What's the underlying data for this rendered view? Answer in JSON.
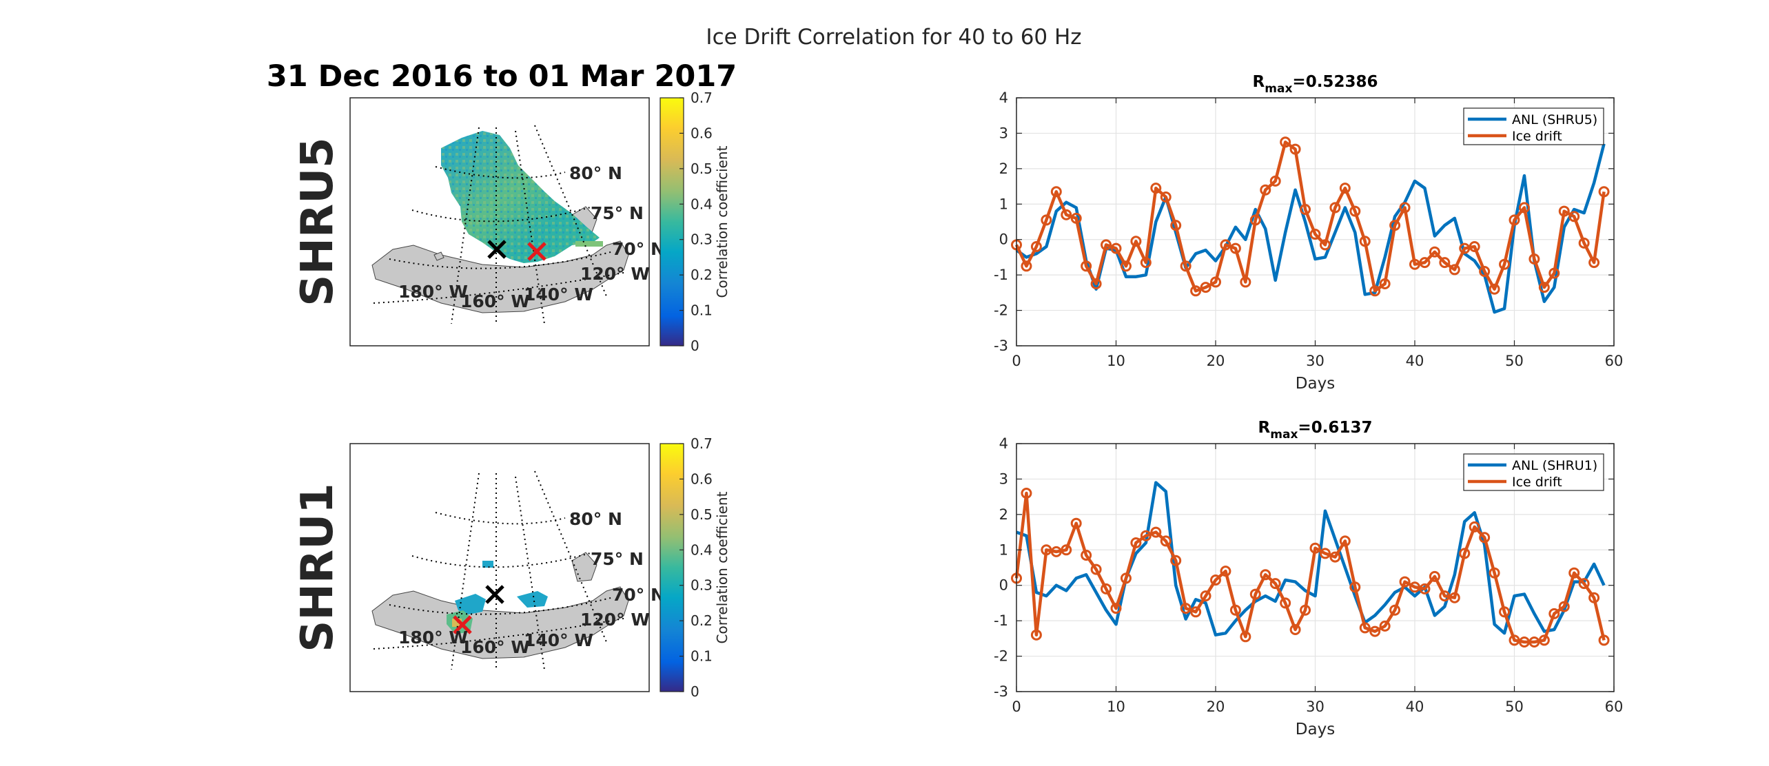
{
  "figure": {
    "title": "Ice Drift Correlation for 40 to 60 Hz",
    "date_range": "31 Dec 2016 to 01 Mar 2017"
  },
  "maps": [
    {
      "station_label": "SHRU5",
      "lat_labels": [
        "80° N",
        "75° N",
        "70° N"
      ],
      "lon_labels": [
        "180° W",
        "160° W",
        "140° W",
        "120° W"
      ],
      "colorbar": {
        "label": "Correlation coefficient",
        "ticks": [
          "0",
          "0.1",
          "0.2",
          "0.3",
          "0.4",
          "0.5",
          "0.6",
          "0.7"
        ]
      },
      "markers": [
        {
          "name": "black-cross",
          "color": "#000000"
        },
        {
          "name": "red-cross",
          "color": "#e41a1c"
        }
      ]
    },
    {
      "station_label": "SHRU1",
      "lat_labels": [
        "80° N",
        "75° N",
        "70° N"
      ],
      "lon_labels": [
        "180° W",
        "160° W",
        "140° W",
        "120° W"
      ],
      "colorbar": {
        "label": "Correlation coefficient",
        "ticks": [
          "0",
          "0.1",
          "0.2",
          "0.3",
          "0.4",
          "0.5",
          "0.6",
          "0.7"
        ]
      },
      "markers": [
        {
          "name": "black-cross",
          "color": "#000000"
        },
        {
          "name": "red-cross",
          "color": "#e41a1c"
        }
      ]
    }
  ],
  "chart_data": [
    {
      "type": "line",
      "title_prefix": "R",
      "title_sub": "max",
      "title_value": "=0.52386",
      "xlabel": "Days",
      "ylabel": "",
      "xlim": [
        0,
        60
      ],
      "ylim": [
        -3,
        4
      ],
      "xticks": [
        0,
        10,
        20,
        30,
        40,
        50,
        60
      ],
      "yticks": [
        -3,
        -2,
        -1,
        0,
        1,
        2,
        3,
        4
      ],
      "grid": true,
      "legend_position": "top-right",
      "series": [
        {
          "name": "ANL (SHRU5)",
          "color": "#0072BD",
          "marker": "none",
          "x": [
            0,
            1,
            2,
            3,
            4,
            5,
            6,
            7,
            8,
            9,
            10,
            11,
            12,
            13,
            14,
            15,
            16,
            17,
            18,
            19,
            20,
            21,
            22,
            23,
            24,
            25,
            26,
            27,
            28,
            29,
            30,
            31,
            32,
            33,
            34,
            35,
            36,
            37,
            38,
            39,
            40,
            41,
            42,
            43,
            44,
            45,
            46,
            47,
            48,
            49,
            50,
            51,
            52,
            53,
            54,
            55,
            56,
            57,
            58,
            59
          ],
          "y": [
            -0.3,
            -0.5,
            -0.4,
            -0.2,
            0.8,
            1.05,
            0.9,
            -0.6,
            -1.4,
            -0.25,
            -0.3,
            -1.05,
            -1.05,
            -1.0,
            0.5,
            1.2,
            0.2,
            -0.8,
            -0.4,
            -0.3,
            -0.6,
            -0.2,
            0.35,
            0.0,
            0.85,
            0.3,
            -1.15,
            0.2,
            1.4,
            0.5,
            -0.55,
            -0.5,
            0.2,
            0.9,
            0.2,
            -1.55,
            -1.5,
            -0.5,
            0.65,
            1.05,
            1.65,
            1.45,
            0.1,
            0.4,
            0.6,
            -0.4,
            -0.6,
            -1.0,
            -2.05,
            -1.95,
            0.4,
            1.8,
            -0.6,
            -1.75,
            -1.35,
            0.35,
            0.85,
            0.75,
            1.6,
            2.7
          ]
        },
        {
          "name": "Ice drift",
          "color": "#D95319",
          "marker": "circle",
          "x": [
            0,
            1,
            2,
            3,
            4,
            5,
            6,
            7,
            8,
            9,
            10,
            11,
            12,
            13,
            14,
            15,
            16,
            17,
            18,
            19,
            20,
            21,
            22,
            23,
            24,
            25,
            26,
            27,
            28,
            29,
            30,
            31,
            32,
            33,
            34,
            35,
            36,
            37,
            38,
            39,
            40,
            41,
            42,
            43,
            44,
            45,
            46,
            47,
            48,
            49,
            50,
            51,
            52,
            53,
            54,
            55,
            56,
            57,
            58,
            59
          ],
          "y": [
            -0.15,
            -0.75,
            -0.2,
            0.55,
            1.35,
            0.7,
            0.6,
            -0.75,
            -1.25,
            -0.15,
            -0.25,
            -0.75,
            -0.05,
            -0.65,
            1.45,
            1.2,
            0.4,
            -0.75,
            -1.45,
            -1.35,
            -1.2,
            -0.15,
            -0.25,
            -1.2,
            0.55,
            1.4,
            1.65,
            2.75,
            2.55,
            0.85,
            0.15,
            -0.15,
            0.9,
            1.45,
            0.8,
            -0.05,
            -1.45,
            -1.25,
            0.4,
            0.9,
            -0.7,
            -0.65,
            -0.35,
            -0.65,
            -0.85,
            -0.25,
            -0.2,
            -0.9,
            -1.4,
            -0.7,
            0.55,
            0.9,
            -0.55,
            -1.35,
            -0.95,
            0.8,
            0.65,
            -0.1,
            -0.65,
            1.35
          ]
        }
      ]
    },
    {
      "type": "line",
      "title_prefix": "R",
      "title_sub": "max",
      "title_value": "=0.6137",
      "xlabel": "Days",
      "ylabel": "",
      "xlim": [
        0,
        60
      ],
      "ylim": [
        -3,
        4
      ],
      "xticks": [
        0,
        10,
        20,
        30,
        40,
        50,
        60
      ],
      "yticks": [
        -3,
        -2,
        -1,
        0,
        1,
        2,
        3,
        4
      ],
      "grid": true,
      "legend_position": "top-right",
      "series": [
        {
          "name": "ANL (SHRU1)",
          "color": "#0072BD",
          "marker": "none",
          "x": [
            0,
            1,
            2,
            3,
            4,
            5,
            6,
            7,
            8,
            9,
            10,
            11,
            12,
            13,
            14,
            15,
            16,
            17,
            18,
            19,
            20,
            21,
            22,
            23,
            24,
            25,
            26,
            27,
            28,
            29,
            30,
            31,
            32,
            33,
            34,
            35,
            36,
            37,
            38,
            39,
            40,
            41,
            42,
            43,
            44,
            45,
            46,
            47,
            48,
            49,
            50,
            51,
            52,
            53,
            54,
            55,
            56,
            57,
            58,
            59
          ],
          "y": [
            1.5,
            1.4,
            -0.2,
            -0.3,
            0.0,
            -0.15,
            0.2,
            0.3,
            -0.2,
            -0.7,
            -1.1,
            0.2,
            0.9,
            1.2,
            2.9,
            2.65,
            0.0,
            -0.95,
            -0.4,
            -0.5,
            -1.4,
            -1.35,
            -1.0,
            -0.7,
            -0.45,
            -0.3,
            -0.45,
            0.15,
            0.1,
            -0.15,
            -0.3,
            2.1,
            1.3,
            0.5,
            -0.3,
            -1.05,
            -0.85,
            -0.55,
            -0.2,
            -0.05,
            -0.3,
            -0.05,
            -0.85,
            -0.6,
            0.3,
            1.8,
            2.05,
            1.15,
            -1.1,
            -1.35,
            -0.3,
            -0.25,
            -0.8,
            -1.3,
            -1.25,
            -0.7,
            0.1,
            0.1,
            0.6,
            0.0
          ]
        },
        {
          "name": "Ice drift",
          "color": "#D95319",
          "marker": "circle",
          "x": [
            0,
            1,
            2,
            3,
            4,
            5,
            6,
            7,
            8,
            9,
            10,
            11,
            12,
            13,
            14,
            15,
            16,
            17,
            18,
            19,
            20,
            21,
            22,
            23,
            24,
            25,
            26,
            27,
            28,
            29,
            30,
            31,
            32,
            33,
            34,
            35,
            36,
            37,
            38,
            39,
            40,
            41,
            42,
            43,
            44,
            45,
            46,
            47,
            48,
            49,
            50,
            51,
            52,
            53,
            54,
            55,
            56,
            57,
            58,
            59
          ],
          "y": [
            0.2,
            2.6,
            -1.4,
            1.0,
            0.95,
            1.0,
            1.75,
            0.85,
            0.45,
            -0.1,
            -0.65,
            0.2,
            1.2,
            1.4,
            1.5,
            1.25,
            0.7,
            -0.65,
            -0.75,
            -0.3,
            0.15,
            0.4,
            -0.7,
            -1.45,
            -0.25,
            0.3,
            0.05,
            -0.5,
            -1.25,
            -0.7,
            1.05,
            0.9,
            0.8,
            1.25,
            -0.05,
            -1.2,
            -1.3,
            -1.15,
            -0.7,
            0.1,
            -0.05,
            -0.1,
            0.25,
            -0.3,
            -0.35,
            0.9,
            1.65,
            1.35,
            0.35,
            -0.75,
            -1.55,
            -1.6,
            -1.6,
            -1.55,
            -0.8,
            -0.6,
            0.35,
            0.05,
            -0.35,
            -1.55
          ]
        }
      ]
    }
  ]
}
